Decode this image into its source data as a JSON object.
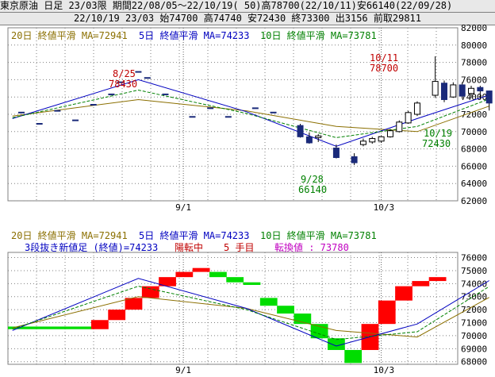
{
  "header": {
    "line1": "東京原油 日足 23/03限 期間22/08/05～22/10/19( 50)高78700(22/10/11)安66140(22/09/28)",
    "line2": "22/10/19 23/03 始74700 高74740 安72430 終73300 出3156 前取29811"
  },
  "colors": {
    "ma20": "#8b6f00",
    "ma5": "#0000c0",
    "ma10": "#008000",
    "label_red": "#c00000",
    "label_green": "#008000",
    "label_blue": "#0000c0",
    "label_magenta": "#c000c0",
    "up_bar": "#ffffff",
    "down_bar": "#1a2a7a",
    "brick_up": "#ff0000",
    "brick_down": "#00dd00",
    "grid": "#7f7f7f"
  },
  "top_legend": {
    "ma20": "20日 終値平滑 MA=72941",
    "ma5": "5日 終値平滑 MA=74233",
    "ma10": "10日 終値平滑 MA=73781"
  },
  "bottom_legend": {
    "ma20": "20日 終値平滑 MA=72941",
    "ma5": "5日 終値平滑 MA=74233",
    "ma10": "10日 終値平滑 MA=73781",
    "kagi_title": "3段抜き新値足 (終値)=74233",
    "kagi_state": "陽転中",
    "kagi_count": "5 手目",
    "kagi_switch": "転換値 : 73780"
  },
  "annotations": {
    "a1_date": "8/25",
    "a1_value": "78430",
    "a2_date": "10/11",
    "a2_value": "78700",
    "a3_date": "9/28",
    "a3_value": "66140",
    "a4_date": "10/19",
    "a4_value": "72430"
  },
  "chart_data": [
    {
      "type": "candlestick",
      "x_tick_labels": [
        "9/1",
        "10/3"
      ],
      "y_tick_labels": [
        "82000",
        "80000",
        "78000",
        "76000",
        "74000",
        "72000",
        "70000",
        "68000",
        "66000",
        "64000",
        "62000"
      ],
      "ylim": [
        62000,
        82000
      ],
      "candles": [
        {
          "date": "2022-09-20",
          "open": 70700,
          "high": 70900,
          "low": 69300,
          "close": 69400
        },
        {
          "date": "2022-09-21",
          "open": 69400,
          "high": 69900,
          "low": 68600,
          "close": 68700
        },
        {
          "date": "2022-09-22",
          "open": 69300,
          "high": 69700,
          "low": 68800,
          "close": 69500
        },
        {
          "date": "2022-09-26",
          "open": 68100,
          "high": 68500,
          "low": 66900,
          "close": 67000
        },
        {
          "date": "2022-09-28",
          "open": 67100,
          "high": 67500,
          "low": 66140,
          "close": 66400
        },
        {
          "date": "2022-09-29",
          "open": 68500,
          "high": 69200,
          "low": 68300,
          "close": 68900
        },
        {
          "date": "2022-09-30",
          "open": 68800,
          "high": 69400,
          "low": 68600,
          "close": 69200
        },
        {
          "date": "2022-10-03",
          "open": 68900,
          "high": 69500,
          "low": 68700,
          "close": 69400
        },
        {
          "date": "2022-10-04",
          "open": 69400,
          "high": 70300,
          "low": 69300,
          "close": 70100
        },
        {
          "date": "2022-10-05",
          "open": 70000,
          "high": 71300,
          "low": 69900,
          "close": 71100
        },
        {
          "date": "2022-10-06",
          "open": 71000,
          "high": 72400,
          "low": 70900,
          "close": 72200
        },
        {
          "date": "2022-10-07",
          "open": 72000,
          "high": 73500,
          "low": 71800,
          "close": 73300
        },
        {
          "date": "2022-10-11",
          "open": 74200,
          "high": 78700,
          "low": 73900,
          "close": 75800
        },
        {
          "date": "2022-10-12",
          "open": 75600,
          "high": 75900,
          "low": 73400,
          "close": 73700
        },
        {
          "date": "2022-10-13",
          "open": 74000,
          "high": 75700,
          "low": 73900,
          "close": 75400
        },
        {
          "date": "2022-10-14",
          "open": 75400,
          "high": 75700,
          "low": 73800,
          "close": 74100
        },
        {
          "date": "2022-10-17",
          "open": 74400,
          "high": 75300,
          "low": 73900,
          "close": 75000
        },
        {
          "date": "2022-10-18",
          "open": 75100,
          "high": 75300,
          "low": 73800,
          "close": 74700
        },
        {
          "date": "2022-10-19",
          "open": 74700,
          "high": 74740,
          "low": 72430,
          "close": 73300
        }
      ],
      "series": [
        {
          "name": "20日 終値平滑",
          "x": [
            "2022-08-05",
            "2022-08-25",
            "2022-09-12",
            "2022-09-26",
            "2022-10-07",
            "2022-10-19"
          ],
          "values": [
            71800,
            73700,
            72400,
            70600,
            70000,
            72941
          ]
        },
        {
          "name": "5日 終値平滑",
          "x": [
            "2022-08-05",
            "2022-08-25",
            "2022-09-12",
            "2022-09-26",
            "2022-10-07",
            "2022-10-19"
          ],
          "values": [
            71500,
            76000,
            72300,
            68300,
            71500,
            74233
          ]
        },
        {
          "name": "10日 終値平滑",
          "x": [
            "2022-08-05",
            "2022-08-25",
            "2022-09-12",
            "2022-09-26",
            "2022-10-07",
            "2022-10-19"
          ],
          "values": [
            71600,
            74800,
            72100,
            69300,
            70600,
            73781
          ]
        }
      ]
    },
    {
      "type": "bar",
      "y_tick_labels": [
        "76000",
        "75000",
        "74000",
        "73000",
        "72000",
        "71000",
        "70000",
        "69000",
        "68000"
      ],
      "x_tick_labels": [
        "9/1",
        "10/3"
      ],
      "ylim": [
        67800,
        76400
      ],
      "bricks": [
        {
          "dir": "up",
          "from": 70500,
          "to": 71200
        },
        {
          "dir": "up",
          "from": 71200,
          "to": 72000
        },
        {
          "dir": "up",
          "from": 72000,
          "to": 72900
        },
        {
          "dir": "up",
          "from": 72900,
          "to": 73800
        },
        {
          "dir": "up",
          "from": 73800,
          "to": 74500
        },
        {
          "dir": "up",
          "from": 74500,
          "to": 74900
        },
        {
          "dir": "up",
          "from": 74900,
          "to": 75200
        },
        {
          "dir": "down",
          "from": 74900,
          "to": 74500
        },
        {
          "dir": "down",
          "from": 74500,
          "to": 74100
        },
        {
          "dir": "down",
          "from": 74100,
          "to": 73900
        },
        {
          "dir": "down",
          "from": 72900,
          "to": 72300
        },
        {
          "dir": "down",
          "from": 72300,
          "to": 71700
        },
        {
          "dir": "down",
          "from": 71700,
          "to": 70900
        },
        {
          "dir": "down",
          "from": 70900,
          "to": 69800
        },
        {
          "dir": "down",
          "from": 69800,
          "to": 68900
        },
        {
          "dir": "down",
          "from": 68900,
          "to": 67900
        },
        {
          "dir": "up",
          "from": 68900,
          "to": 70900
        },
        {
          "dir": "up",
          "from": 70900,
          "to": 72700
        },
        {
          "dir": "up",
          "from": 72700,
          "to": 73800
        },
        {
          "dir": "up",
          "from": 73800,
          "to": 74200
        },
        {
          "dir": "up",
          "from": 74200,
          "to": 74500
        }
      ],
      "series": [
        {
          "name": "20日 終値平滑",
          "x": [
            "2022-08-05",
            "2022-08-25",
            "2022-09-12",
            "2022-09-26",
            "2022-10-07",
            "2022-10-19"
          ],
          "values": [
            70600,
            73000,
            72100,
            70400,
            69900,
            72941
          ]
        },
        {
          "name": "5日 終値平滑",
          "x": [
            "2022-08-05",
            "2022-08-25",
            "2022-09-12",
            "2022-09-26",
            "2022-10-07",
            "2022-10-19"
          ],
          "values": [
            70400,
            74400,
            72100,
            69200,
            70900,
            74233
          ]
        },
        {
          "name": "10日 終値平滑",
          "x": [
            "2022-08-05",
            "2022-08-25",
            "2022-09-12",
            "2022-09-26",
            "2022-10-07",
            "2022-10-19"
          ],
          "values": [
            70500,
            73800,
            72000,
            69700,
            70300,
            73781
          ]
        }
      ]
    }
  ]
}
